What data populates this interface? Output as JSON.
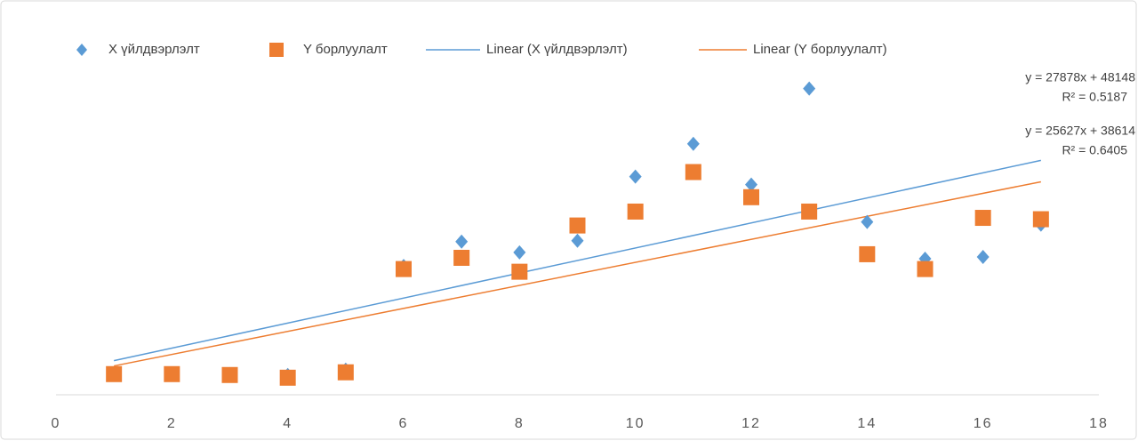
{
  "chart_data": {
    "type": "scatter",
    "x": [
      1,
      2,
      3,
      4,
      5,
      6,
      7,
      8,
      9,
      10,
      11,
      12,
      13,
      14,
      15,
      16,
      17
    ],
    "series": [
      {
        "name": "X үйлдвэрлэлт",
        "color": "#5b9bd5",
        "marker": "diamond",
        "values": [
          46000,
          46000,
          46000,
          44000,
          56000,
          287000,
          341000,
          317000,
          343000,
          486000,
          559000,
          468000,
          682000,
          385000,
          303000,
          307000,
          379000
        ]
      },
      {
        "name": "Y борлуулалт",
        "color": "#ed7d31",
        "marker": "square",
        "values": [
          46000,
          46000,
          44000,
          38000,
          50000,
          280000,
          305000,
          274000,
          377000,
          408000,
          496000,
          440000,
          408000,
          313000,
          280000,
          394000,
          391000
        ]
      }
    ],
    "trendlines": [
      {
        "name": "Linear (X үйлдвэрлэлт)",
        "color": "#5b9bd5",
        "slope": 27878,
        "intercept": 48148,
        "equation": "y = 27878x + 48148",
        "r2": "R² = 0.5187"
      },
      {
        "name": "Linear (Y борлуулалт)",
        "color": "#ed7d31",
        "slope": 25627,
        "intercept": 38614,
        "equation": "y = 25627x + 38614",
        "r2": "R² = 0.6405"
      }
    ],
    "xlim": [
      0,
      18
    ],
    "xticks": [
      0,
      2,
      4,
      6,
      8,
      10,
      12,
      14,
      16,
      18
    ],
    "ylim": [
      0,
      800000
    ],
    "legend": "top"
  }
}
